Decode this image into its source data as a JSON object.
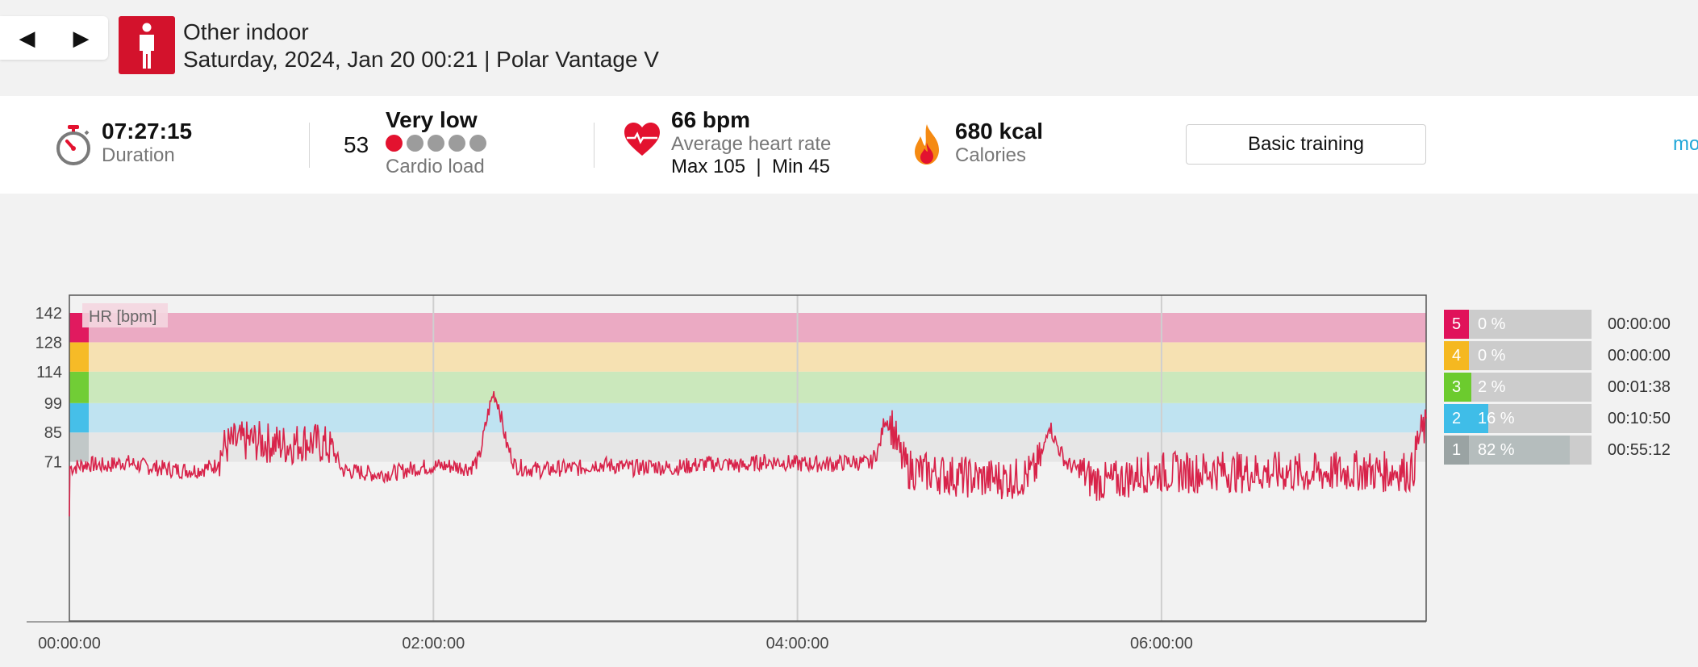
{
  "header": {
    "prev_glyph": "◀",
    "next_glyph": "▶",
    "sport_icon": "person-icon",
    "title": "Other indoor",
    "subtitle": "Saturday, 2024, Jan 20 00:21 | Polar Vantage V"
  },
  "summary": {
    "duration": {
      "icon": "stopwatch-icon",
      "value": "07:27:15",
      "label": "Duration"
    },
    "cardio_load": {
      "value": "53",
      "level": "Very low",
      "label": "Cardio load",
      "dots_total": 5,
      "dots_filled": 1
    },
    "heart_rate": {
      "icon": "heart-icon",
      "value": "66 bpm",
      "label": "Average heart rate",
      "max_min": "Max 105  |  Min 45"
    },
    "calories": {
      "icon": "flame-icon",
      "value": "680 kcal",
      "label": "Calories"
    },
    "training_button": "Basic training",
    "more_link": "mo"
  },
  "colors": {
    "accent_red": "#d3122c",
    "hr_line": "#d8234a",
    "zone5": "#e0125a",
    "zone4": "#f5b820",
    "zone3": "#6ccb2e",
    "zone2": "#3fbde8",
    "zone1": "#bcc4c4",
    "link": "#1fa6d8"
  },
  "chart_data": {
    "type": "line",
    "ylabel": "HR [bpm]",
    "y_ticks": [
      71,
      85,
      99,
      114,
      128,
      142
    ],
    "x_ticks": [
      "00:00:00",
      "02:00:00",
      "04:00:00",
      "06:00:00"
    ],
    "x_range_hours": [
      0,
      7.454
    ],
    "zone_boundaries": [
      71,
      85,
      99,
      114,
      128,
      142
    ],
    "series": [
      {
        "points": [
          [
            0,
            45
          ],
          [
            0.005,
            68
          ],
          [
            0.1,
            70
          ],
          [
            0.2,
            69
          ],
          [
            0.3,
            71
          ],
          [
            0.4,
            69
          ],
          [
            0.5,
            68
          ],
          [
            0.6,
            67
          ],
          [
            0.7,
            67
          ],
          [
            0.8,
            69
          ],
          [
            0.85,
            78
          ],
          [
            0.9,
            80
          ],
          [
            1.0,
            81
          ],
          [
            1.1,
            80
          ],
          [
            1.2,
            79
          ],
          [
            1.3,
            81
          ],
          [
            1.4,
            79
          ],
          [
            1.45,
            76
          ],
          [
            1.5,
            67
          ],
          [
            1.6,
            66
          ],
          [
            1.7,
            65
          ],
          [
            1.8,
            66
          ],
          [
            1.9,
            68
          ],
          [
            2.0,
            69
          ],
          [
            2.1,
            69
          ],
          [
            2.2,
            68
          ],
          [
            2.25,
            72
          ],
          [
            2.3,
            94
          ],
          [
            2.33,
            104
          ],
          [
            2.36,
            98
          ],
          [
            2.4,
            80
          ],
          [
            2.45,
            69
          ],
          [
            2.5,
            68
          ],
          [
            2.6,
            67
          ],
          [
            2.7,
            68
          ],
          [
            2.8,
            68
          ],
          [
            2.9,
            70
          ],
          [
            3.0,
            69
          ],
          [
            3.1,
            68
          ],
          [
            3.2,
            69
          ],
          [
            3.3,
            68
          ],
          [
            3.4,
            69
          ],
          [
            3.5,
            70
          ],
          [
            3.6,
            70
          ],
          [
            3.7,
            69
          ],
          [
            3.8,
            71
          ],
          [
            3.9,
            71
          ],
          [
            4.0,
            70
          ],
          [
            4.1,
            70
          ],
          [
            4.2,
            70
          ],
          [
            4.3,
            71
          ],
          [
            4.4,
            70
          ],
          [
            4.45,
            78
          ],
          [
            4.48,
            92
          ],
          [
            4.52,
            88
          ],
          [
            4.56,
            75
          ],
          [
            4.6,
            68
          ],
          [
            4.7,
            66
          ],
          [
            4.8,
            65
          ],
          [
            4.9,
            64
          ],
          [
            5.0,
            63
          ],
          [
            5.1,
            63
          ],
          [
            5.2,
            63
          ],
          [
            5.3,
            66
          ],
          [
            5.35,
            75
          ],
          [
            5.38,
            90
          ],
          [
            5.42,
            80
          ],
          [
            5.48,
            70
          ],
          [
            5.55,
            67
          ],
          [
            5.6,
            63
          ],
          [
            5.7,
            61
          ],
          [
            5.8,
            63
          ],
          [
            5.9,
            66
          ],
          [
            6.0,
            66
          ],
          [
            6.1,
            66
          ],
          [
            6.2,
            66
          ],
          [
            6.3,
            67
          ],
          [
            6.4,
            66
          ],
          [
            6.5,
            66
          ],
          [
            6.6,
            66
          ],
          [
            6.7,
            66
          ],
          [
            6.8,
            65
          ],
          [
            6.9,
            66
          ],
          [
            7.0,
            66
          ],
          [
            7.1,
            67
          ],
          [
            7.2,
            66
          ],
          [
            7.3,
            67
          ],
          [
            7.38,
            66
          ],
          [
            7.41,
            82
          ],
          [
            7.454,
            88
          ]
        ]
      }
    ],
    "zones": [
      {
        "zone": "5",
        "percent": "0 %",
        "fraction": 0.0,
        "time": "00:00:00"
      },
      {
        "zone": "4",
        "percent": "0 %",
        "fraction": 0.0,
        "time": "00:00:00"
      },
      {
        "zone": "3",
        "percent": "2 %",
        "fraction": 0.02,
        "time": "00:01:38"
      },
      {
        "zone": "2",
        "percent": "16 %",
        "fraction": 0.16,
        "time": "00:10:50"
      },
      {
        "zone": "1",
        "percent": "82 %",
        "fraction": 0.82,
        "time": "00:55:12"
      }
    ]
  }
}
